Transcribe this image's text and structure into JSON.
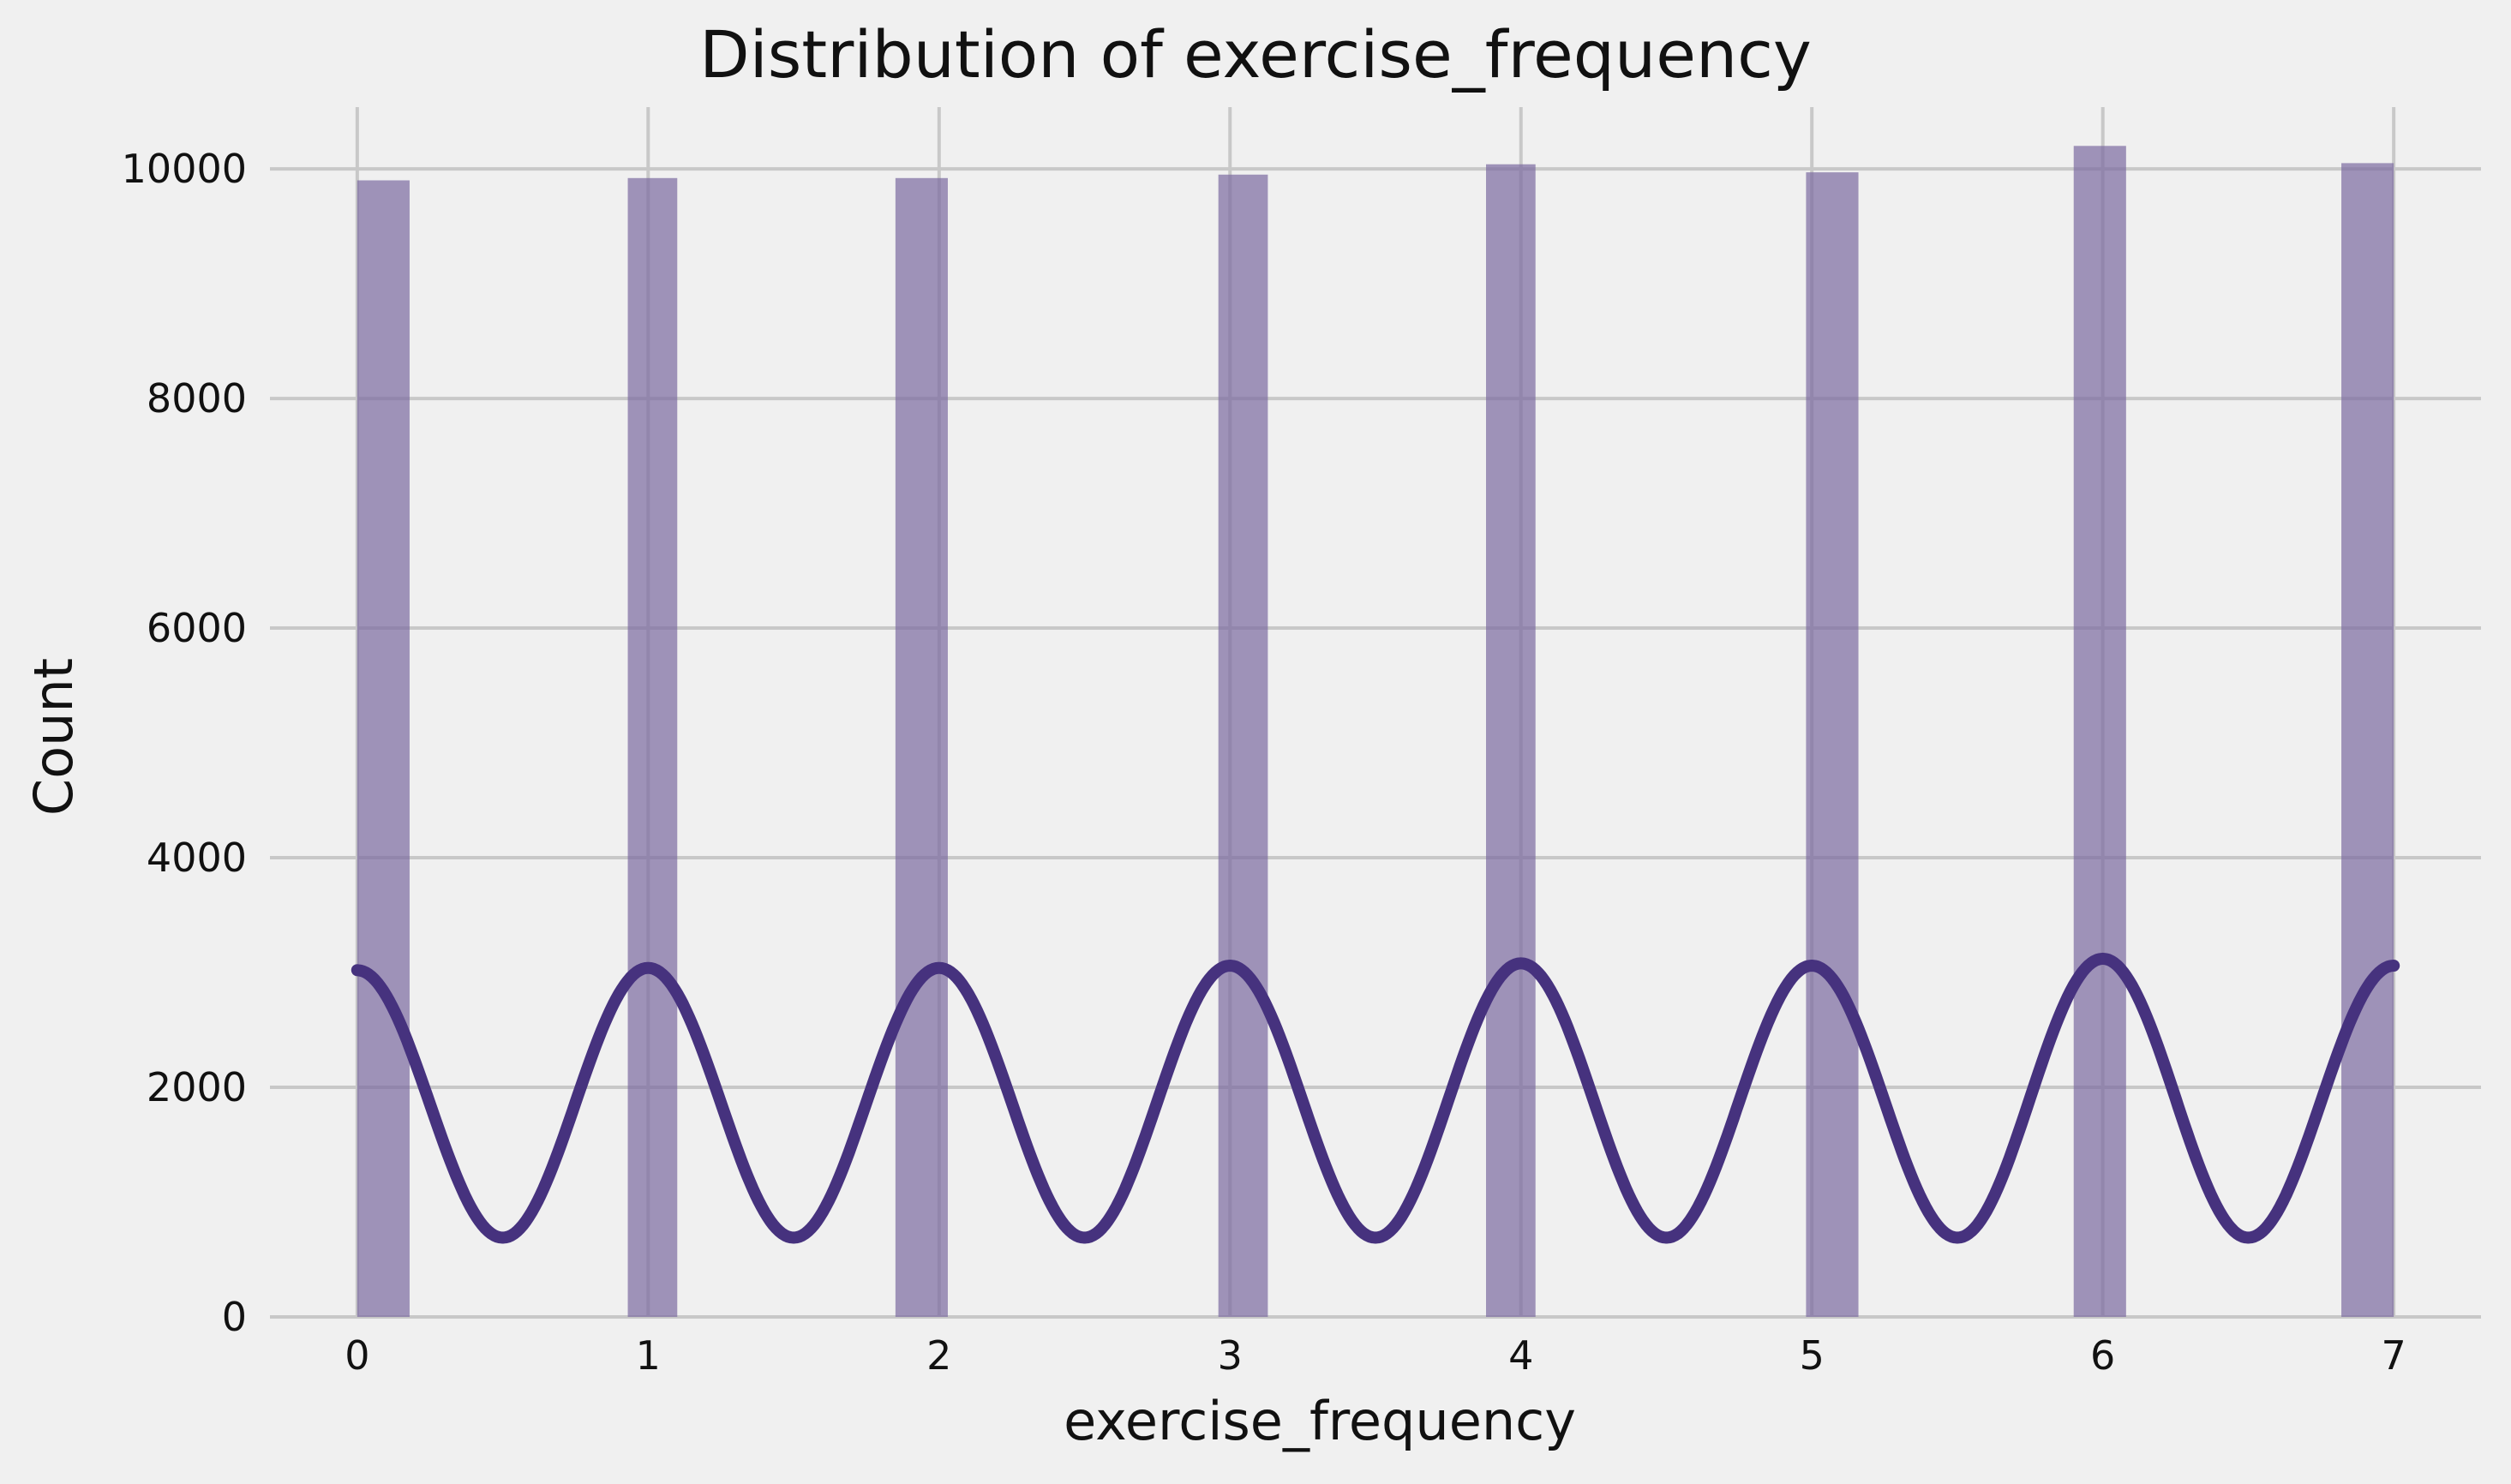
{
  "chart_data": {
    "type": "bar",
    "title": "Distribution of exercise_frequency",
    "xlabel": "exercise_frequency",
    "ylabel": "Count",
    "xlim": [
      -0.3,
      7.3
    ],
    "ylim": [
      0,
      10650
    ],
    "xticks": [
      "0",
      "1",
      "2",
      "3",
      "4",
      "5",
      "6",
      "7"
    ],
    "yticks": [
      "0",
      "2000",
      "4000",
      "6000",
      "8000",
      "10000"
    ],
    "grid": true,
    "bar_color": "#7a6aa0",
    "line_color": "#46327e",
    "bins": [
      {
        "x0": 0.0,
        "x1": 0.18,
        "count": 9900
      },
      {
        "x0": 0.93,
        "x1": 1.1,
        "count": 9920
      },
      {
        "x0": 1.85,
        "x1": 2.03,
        "count": 9920
      },
      {
        "x0": 2.96,
        "x1": 3.13,
        "count": 9950
      },
      {
        "x0": 3.88,
        "x1": 4.05,
        "count": 10040
      },
      {
        "x0": 4.98,
        "x1": 5.16,
        "count": 9970
      },
      {
        "x0": 5.9,
        "x1": 6.08,
        "count": 10200
      },
      {
        "x0": 6.82,
        "x1": 7.0,
        "count": 10050
      }
    ],
    "kde": {
      "peaks_x": [
        0,
        1,
        2,
        3,
        4,
        5,
        6,
        7
      ],
      "peaks_y": [
        3020,
        3040,
        3040,
        3060,
        3080,
        3060,
        3120,
        3060
      ],
      "trough_y": 690
    }
  }
}
